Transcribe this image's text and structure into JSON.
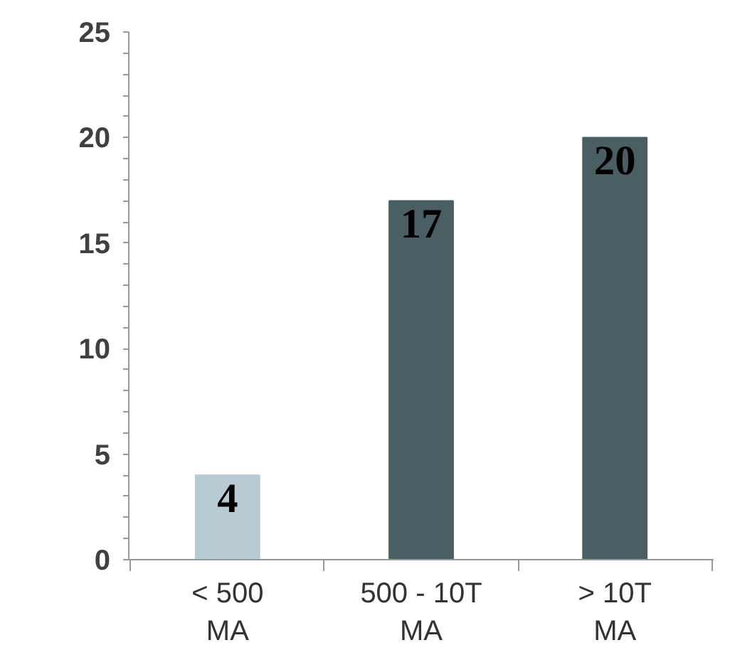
{
  "chart_data": {
    "type": "bar",
    "categories": [
      "< 500\nMA",
      "500 - 10T\nMA",
      "> 10T\nMA"
    ],
    "values": [
      4,
      17,
      20
    ],
    "colors": [
      "#b8cad2",
      "#4a5f63",
      "#4a5f63"
    ],
    "ylim": [
      0,
      25
    ],
    "yticks": [
      0,
      5,
      10,
      15,
      20,
      25
    ],
    "grid": false,
    "data_labels": true
  }
}
